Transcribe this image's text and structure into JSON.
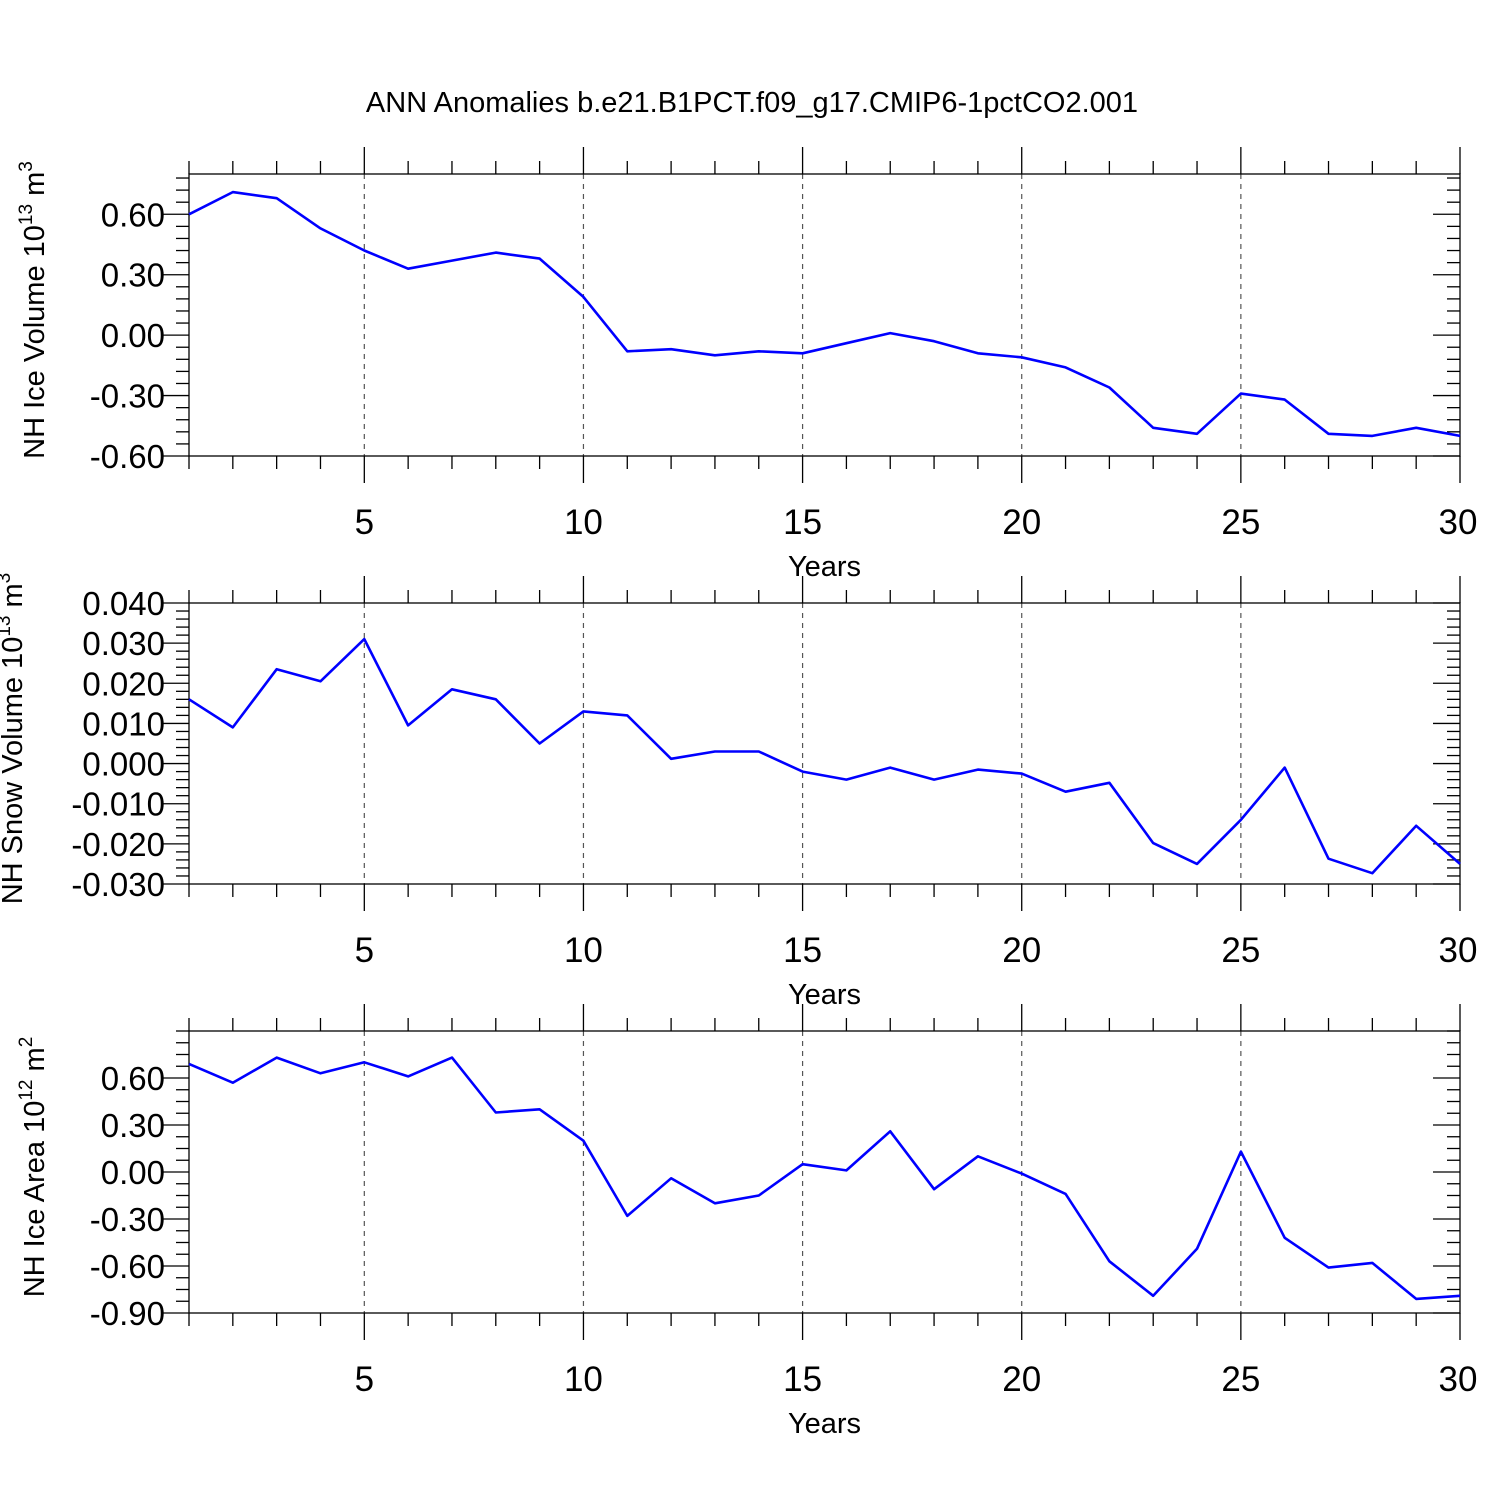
{
  "title": "ANN Anomalies b.e21.B1PCT.f09_g17.CMIP6-1pctCO2.001",
  "line_color": "#0000ff",
  "chart_data": [
    {
      "type": "line",
      "ylabel_main": "NH Ice Volume 10",
      "ylabel_exp": "13",
      "ylabel_unit": " m",
      "ylabel_unit_exp": "3",
      "xlabel": "Years",
      "xlim": [
        1,
        30
      ],
      "ylim": [
        -0.6,
        0.8
      ],
      "x_ticks": [
        5,
        10,
        15,
        20,
        25,
        30
      ],
      "x_tick_labels": [
        "5",
        "10",
        "15",
        "20",
        "25",
        "30"
      ],
      "y_ticks": [
        -0.6,
        -0.3,
        0.0,
        0.3,
        0.6
      ],
      "y_tick_labels": [
        "-0.60",
        "-0.30",
        "0.00",
        "0.30",
        "0.60"
      ],
      "y_minor_step": 0.06,
      "grid": "dashed vertical at major x ticks",
      "x": [
        1,
        2,
        3,
        4,
        5,
        6,
        7,
        8,
        9,
        10,
        11,
        12,
        13,
        14,
        15,
        16,
        17,
        18,
        19,
        20,
        21,
        22,
        23,
        24,
        25,
        26,
        27,
        28,
        29,
        30
      ],
      "values": [
        0.6,
        0.71,
        0.68,
        0.53,
        0.42,
        0.33,
        0.37,
        0.41,
        0.38,
        0.19,
        -0.08,
        -0.07,
        -0.1,
        -0.08,
        -0.09,
        -0.04,
        0.01,
        -0.03,
        -0.09,
        -0.11,
        -0.16,
        -0.26,
        -0.46,
        -0.49,
        -0.29,
        -0.32,
        -0.49,
        -0.5,
        -0.46,
        -0.5
      ]
    },
    {
      "type": "line",
      "ylabel_main": "NH Snow Volume 10",
      "ylabel_exp": "13",
      "ylabel_unit": " m",
      "ylabel_unit_exp": "3",
      "xlabel": "Years",
      "xlim": [
        1,
        30
      ],
      "ylim": [
        -0.03,
        0.04
      ],
      "x_ticks": [
        5,
        10,
        15,
        20,
        25,
        30
      ],
      "x_tick_labels": [
        "5",
        "10",
        "15",
        "20",
        "25",
        "30"
      ],
      "y_ticks": [
        -0.03,
        -0.02,
        -0.01,
        0.0,
        0.01,
        0.02,
        0.03,
        0.04
      ],
      "y_tick_labels": [
        "-0.030",
        "-0.020",
        "-0.010",
        "0.000",
        "0.010",
        "0.020",
        "0.030",
        "0.040"
      ],
      "y_minor_step": 0.002,
      "grid": "dashed vertical at major x ticks",
      "x": [
        1,
        2,
        3,
        4,
        5,
        6,
        7,
        8,
        9,
        10,
        11,
        12,
        13,
        14,
        15,
        16,
        17,
        18,
        19,
        20,
        21,
        22,
        23,
        24,
        25,
        26,
        27,
        28,
        29,
        30
      ],
      "values": [
        0.016,
        0.009,
        0.0235,
        0.0205,
        0.031,
        0.0095,
        0.0185,
        0.016,
        0.005,
        0.013,
        0.012,
        0.0012,
        0.003,
        0.003,
        -0.002,
        -0.004,
        -0.001,
        -0.004,
        -0.0015,
        -0.0025,
        -0.007,
        -0.0048,
        -0.0198,
        -0.025,
        -0.014,
        -0.001,
        -0.0237,
        -0.0273,
        -0.0155,
        -0.025
      ]
    },
    {
      "type": "line",
      "ylabel_main": "NH Ice Area 10",
      "ylabel_exp": "12",
      "ylabel_unit": " m",
      "ylabel_unit_exp": "2",
      "xlabel": "Years",
      "xlim": [
        1,
        30
      ],
      "ylim": [
        -0.9,
        0.9
      ],
      "x_ticks": [
        5,
        10,
        15,
        20,
        25,
        30
      ],
      "x_tick_labels": [
        "5",
        "10",
        "15",
        "20",
        "25",
        "30"
      ],
      "y_ticks": [
        -0.9,
        -0.6,
        -0.3,
        0.0,
        0.3,
        0.6
      ],
      "y_tick_labels": [
        "-0.90",
        "-0.60",
        "-0.30",
        "0.00",
        "0.30",
        "0.60"
      ],
      "y_minor_step": 0.075,
      "grid": "dashed vertical at major x ticks",
      "x": [
        1,
        2,
        3,
        4,
        5,
        6,
        7,
        8,
        9,
        10,
        11,
        12,
        13,
        14,
        15,
        16,
        17,
        18,
        19,
        20,
        21,
        22,
        23,
        24,
        25,
        26,
        27,
        28,
        29,
        30
      ],
      "values": [
        0.69,
        0.57,
        0.73,
        0.63,
        0.7,
        0.61,
        0.73,
        0.38,
        0.4,
        0.2,
        -0.28,
        -0.04,
        -0.2,
        -0.15,
        0.05,
        0.01,
        0.26,
        -0.11,
        0.1,
        -0.01,
        -0.14,
        -0.57,
        -0.79,
        -0.49,
        0.13,
        -0.42,
        -0.61,
        -0.58,
        -0.81,
        -0.79
      ]
    }
  ]
}
